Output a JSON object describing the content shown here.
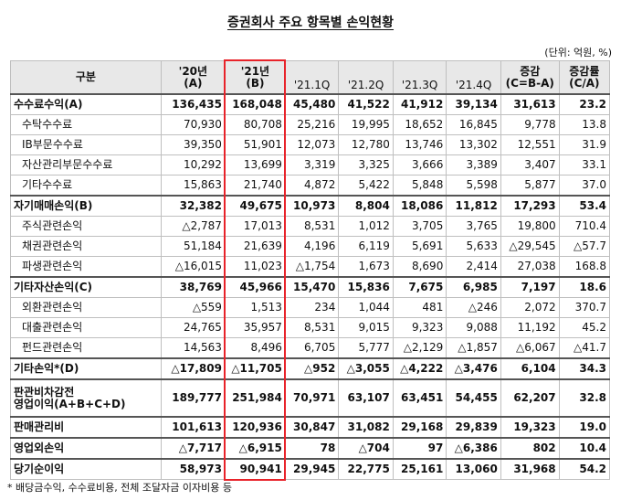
{
  "title": "증권회사 주요 항목별 손익현황",
  "unit": "(단위: 억원, %)",
  "headers": {
    "category": "구분",
    "y20": "'20년\n(A)",
    "y21": "'21년\n(B)",
    "q1": "'21.1Q",
    "q2": "'21.2Q",
    "q3": "'21.3Q",
    "q4": "'21.4Q",
    "diff": "증감\n(C=B-A)",
    "rate": "증감률\n(C/A)"
  },
  "rows": [
    {
      "label": "수수료수익(A)",
      "level": "major",
      "y20": "136,435",
      "y21": "168,048",
      "q1": "45,480",
      "q2": "41,522",
      "q3": "41,912",
      "q4": "39,134",
      "diff": "31,613",
      "rate": "23.2"
    },
    {
      "label": "수탁수수료",
      "level": "minor",
      "y20": "70,930",
      "y21": "80,708",
      "q1": "25,216",
      "q2": "19,995",
      "q3": "18,652",
      "q4": "16,845",
      "diff": "9,778",
      "rate": "13.8"
    },
    {
      "label": "IB부문수수료",
      "level": "minor",
      "y20": "39,350",
      "y21": "51,901",
      "q1": "12,073",
      "q2": "12,780",
      "q3": "13,746",
      "q4": "13,302",
      "diff": "12,551",
      "rate": "31.9"
    },
    {
      "label": "자산관리부문수수료",
      "level": "minor",
      "y20": "10,292",
      "y21": "13,699",
      "q1": "3,319",
      "q2": "3,325",
      "q3": "3,666",
      "q4": "3,389",
      "diff": "3,407",
      "rate": "33.1"
    },
    {
      "label": "기타수수료",
      "level": "minor",
      "y20": "15,863",
      "y21": "21,740",
      "q1": "4,872",
      "q2": "5,422",
      "q3": "5,848",
      "q4": "5,598",
      "diff": "5,877",
      "rate": "37.0"
    },
    {
      "label": "자기매매손익(B)",
      "level": "major",
      "y20": "32,382",
      "y21": "49,675",
      "q1": "10,973",
      "q2": "8,804",
      "q3": "18,086",
      "q4": "11,812",
      "diff": "17,293",
      "rate": "53.4"
    },
    {
      "label": "주식관련손익",
      "level": "minor",
      "y20": "△2,787",
      "y21": "17,013",
      "q1": "8,531",
      "q2": "1,012",
      "q3": "3,705",
      "q4": "3,765",
      "diff": "19,800",
      "rate": "710.4"
    },
    {
      "label": "채권관련손익",
      "level": "minor",
      "y20": "51,184",
      "y21": "21,639",
      "q1": "4,196",
      "q2": "6,119",
      "q3": "5,691",
      "q4": "5,633",
      "diff": "△29,545",
      "rate": "△57.7"
    },
    {
      "label": "파생관련손익",
      "level": "minor",
      "y20": "△16,015",
      "y21": "11,023",
      "q1": "△1,754",
      "q2": "1,673",
      "q3": "8,690",
      "q4": "2,414",
      "diff": "27,038",
      "rate": "168.8"
    },
    {
      "label": "기타자산손익(C)",
      "level": "major",
      "y20": "38,769",
      "y21": "45,966",
      "q1": "15,470",
      "q2": "15,836",
      "q3": "7,675",
      "q4": "6,985",
      "diff": "7,197",
      "rate": "18.6"
    },
    {
      "label": "외환관련손익",
      "level": "minor",
      "y20": "△559",
      "y21": "1,513",
      "q1": "234",
      "q2": "1,044",
      "q3": "481",
      "q4": "△246",
      "diff": "2,072",
      "rate": "370.7"
    },
    {
      "label": "대출관련손익",
      "level": "minor",
      "y20": "24,765",
      "y21": "35,957",
      "q1": "8,531",
      "q2": "9,015",
      "q3": "9,323",
      "q4": "9,088",
      "diff": "11,192",
      "rate": "45.2"
    },
    {
      "label": "펀드관련손익",
      "level": "minor",
      "y20": "14,563",
      "y21": "8,496",
      "q1": "6,705",
      "q2": "5,777",
      "q3": "△2,129",
      "q4": "△1,857",
      "diff": "△6,067",
      "rate": "△41.7"
    },
    {
      "label": "기타손익*(D)",
      "level": "major",
      "y20": "△17,809",
      "y21": "△11,705",
      "q1": "△952",
      "q2": "△3,055",
      "q3": "△4,222",
      "q4": "△3,476",
      "diff": "6,104",
      "rate": "34.3"
    },
    {
      "label": "판관비차감전\n영업이익(A+B+C+D)",
      "level": "major tall",
      "y20": "189,777",
      "y21": "251,984",
      "q1": "70,971",
      "q2": "63,107",
      "q3": "63,451",
      "q4": "54,455",
      "diff": "62,207",
      "rate": "32.8"
    },
    {
      "label": "판매관리비",
      "level": "major",
      "y20": "101,613",
      "y21": "120,936",
      "q1": "30,847",
      "q2": "31,082",
      "q3": "29,168",
      "q4": "29,839",
      "diff": "19,323",
      "rate": "19.0"
    },
    {
      "label": "영업외손익",
      "level": "major",
      "y20": "△7,717",
      "y21": "△6,915",
      "q1": "78",
      "q2": "△704",
      "q3": "97",
      "q4": "△6,386",
      "diff": "802",
      "rate": "10.4"
    },
    {
      "label": "당기순이익",
      "level": "major",
      "y20": "58,973",
      "y21": "90,941",
      "q1": "29,945",
      "q2": "22,775",
      "q3": "25,161",
      "q4": "13,060",
      "diff": "31,968",
      "rate": "54.2"
    }
  ],
  "bold_columns": [
    "y20",
    "y21",
    "q1",
    "q2",
    "q3",
    "q4",
    "diff",
    "rate"
  ],
  "footnote": "* 배당금수익, 수수료비용, 전체 조달자금 이자비용 등",
  "highlight_color": "#e8232a"
}
